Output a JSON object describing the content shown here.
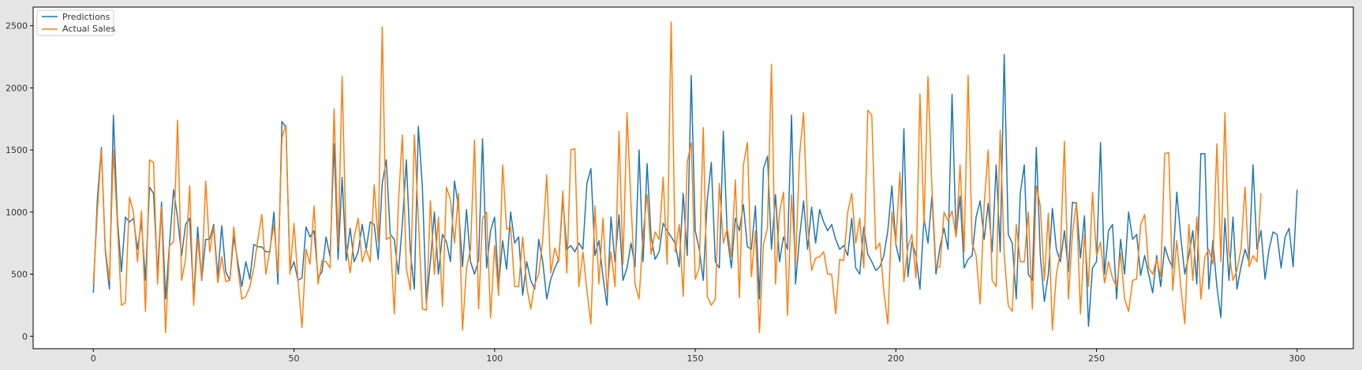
{
  "chart_data": {
    "type": "line",
    "title": "",
    "xlabel": "",
    "ylabel": "",
    "xlim": [
      -15,
      314
    ],
    "ylim": [
      -100,
      2650
    ],
    "xticks": [
      0,
      50,
      100,
      150,
      200,
      250,
      300
    ],
    "yticks": [
      0,
      500,
      1000,
      1500,
      2000,
      2500
    ],
    "xtick_labels": [
      "0",
      "50",
      "100",
      "150",
      "200",
      "250",
      "300"
    ],
    "ytick_labels": [
      "0",
      "500",
      "1000",
      "1500",
      "2000",
      "2500"
    ],
    "legend": {
      "position": "top-left",
      "entries": [
        "Predictions",
        "Actual Sales"
      ]
    },
    "series": [
      {
        "name": "Predictions",
        "color": "#1f77b4",
        "values": [
          350,
          1100,
          1520,
          680,
          380,
          1780,
          950,
          520,
          960,
          920,
          950,
          700,
          920,
          450,
          1200,
          1150,
          500,
          1080,
          300,
          750,
          1180,
          950,
          650,
          900,
          950,
          300,
          880,
          450,
          780,
          780,
          900,
          480,
          890,
          520,
          450,
          800,
          600,
          400,
          600,
          460,
          740,
          720,
          720,
          680,
          680,
          1000,
          420,
          1730,
          1680,
          520,
          600,
          450,
          470,
          880,
          800,
          850,
          470,
          520,
          800,
          640,
          1550,
          620,
          1280,
          610,
          870,
          600,
          680,
          900,
          700,
          920,
          900,
          620,
          1230,
          1420,
          820,
          780,
          500,
          900,
          1420,
          680,
          380,
          1690,
          1200,
          260,
          600,
          1000,
          500,
          820,
          760,
          600,
          1250,
          1040,
          560,
          1020,
          600,
          500,
          610,
          1590,
          550,
          850,
          960,
          400,
          770,
          540,
          1000,
          750,
          800,
          330,
          600,
          450,
          380,
          780,
          600,
          300,
          460,
          550,
          620,
          1110,
          700,
          730,
          680,
          750,
          700,
          1230,
          1350,
          650,
          770,
          480,
          250,
          960,
          600,
          980,
          450,
          550,
          750,
          560,
          1500,
          600,
          1390,
          800,
          620,
          680,
          910,
          850,
          800,
          750,
          560,
          1150,
          650,
          2100,
          850,
          700,
          450,
          1100,
          1400,
          600,
          550,
          1650,
          800,
          550,
          950,
          850,
          1060,
          720,
          700,
          1050,
          300,
          1350,
          1450,
          700,
          1140,
          600,
          800,
          700,
          1780,
          420,
          800,
          1090,
          700,
          1040,
          750,
          1020,
          920,
          850,
          900,
          780,
          700,
          730,
          650,
          950,
          550,
          500,
          880,
          660,
          600,
          530,
          560,
          650,
          850,
          1210,
          740,
          600,
          1670,
          480,
          760,
          650,
          380,
          950,
          750,
          1130,
          500,
          720,
          870,
          700,
          1950,
          800,
          1130,
          550,
          620,
          650,
          960,
          1090,
          780,
          1070,
          680,
          1380,
          680,
          2270,
          820,
          750,
          300,
          1150,
          1380,
          500,
          450,
          1520,
          650,
          280,
          500,
          1030,
          700,
          600,
          850,
          520,
          1080,
          1070,
          630,
          970,
          80,
          550,
          600,
          1560,
          500,
          850,
          900,
          300,
          780,
          500,
          1000,
          780,
          820,
          490,
          650,
          500,
          350,
          650,
          400,
          720,
          620,
          550,
          1160,
          800,
          500,
          650,
          850,
          420,
          1470,
          1470,
          380,
          770,
          400,
          150,
          950,
          450,
          960,
          380,
          560,
          700,
          600,
          1380,
          700,
          850,
          460,
          700,
          840,
          820,
          550,
          800,
          870,
          560,
          1180
        ]
      },
      {
        "name": "Actual Sales",
        "color": "#ff7f0e",
        "values": [
          420,
          1000,
          1500,
          700,
          450,
          1500,
          900,
          250,
          270,
          1120,
          1000,
          600,
          1010,
          200,
          1420,
          1400,
          420,
          1040,
          30,
          730,
          760,
          1740,
          450,
          620,
          1210,
          250,
          790,
          460,
          1250,
          680,
          880,
          430,
          640,
          440,
          450,
          880,
          550,
          300,
          320,
          400,
          550,
          780,
          980,
          500,
          700,
          900,
          510,
          1600,
          1700,
          500,
          910,
          450,
          70,
          700,
          580,
          1050,
          420,
          610,
          600,
          550,
          1830,
          720,
          2090,
          750,
          510,
          800,
          950,
          600,
          700,
          600,
          1220,
          760,
          2490,
          780,
          800,
          180,
          1050,
          1620,
          550,
          370,
          1620,
          950,
          220,
          210,
          1090,
          500,
          960,
          240,
          1200,
          1100,
          750,
          1150,
          50,
          550,
          700,
          1580,
          220,
          950,
          1000,
          150,
          730,
          330,
          1380,
          860,
          880,
          400,
          400,
          800,
          400,
          220,
          420,
          500,
          780,
          1300,
          510,
          710,
          600,
          1170,
          510,
          1500,
          1510,
          400,
          680,
          370,
          100,
          1050,
          420,
          950,
          360,
          680,
          400,
          1650,
          580,
          1800,
          1060,
          420,
          300,
          820,
          1140,
          660,
          840,
          780,
          1280,
          580,
          2530,
          680,
          900,
          320,
          1400,
          1560,
          460,
          550,
          1680,
          320,
          250,
          300,
          1230,
          750,
          870,
          640,
          1260,
          310,
          1380,
          1560,
          480,
          850,
          30,
          740,
          870,
          2190,
          420,
          1000,
          1160,
          170,
          1140,
          580,
          1460,
          1800,
          900,
          530,
          630,
          640,
          680,
          500,
          500,
          180,
          620,
          610,
          1000,
          1150,
          750,
          950,
          550,
          1820,
          1780,
          700,
          750,
          360,
          100,
          1000,
          750,
          1320,
          440,
          720,
          820,
          470,
          1950,
          900,
          2090,
          1180,
          550,
          560,
          1000,
          930,
          1010,
          800,
          1380,
          680,
          2100,
          750,
          650,
          260,
          1060,
          1500,
          450,
          400,
          1660,
          650,
          250,
          200,
          900,
          600,
          600,
          1000,
          220,
          1210,
          1050,
          450,
          990,
          50,
          500,
          680,
          1570,
          300,
          830,
          1080,
          180,
          820,
          400,
          1160,
          650,
          760,
          430,
          600,
          470,
          400,
          670,
          300,
          200,
          450,
          460,
          900,
          980,
          550,
          500,
          620,
          480,
          1470,
          1480,
          370,
          770,
          400,
          100,
          900,
          450,
          960,
          300,
          640,
          700,
          580,
          1550,
          600,
          1800,
          680,
          450,
          530,
          700,
          1200,
          560,
          650,
          600,
          1150
        ]
      }
    ]
  }
}
